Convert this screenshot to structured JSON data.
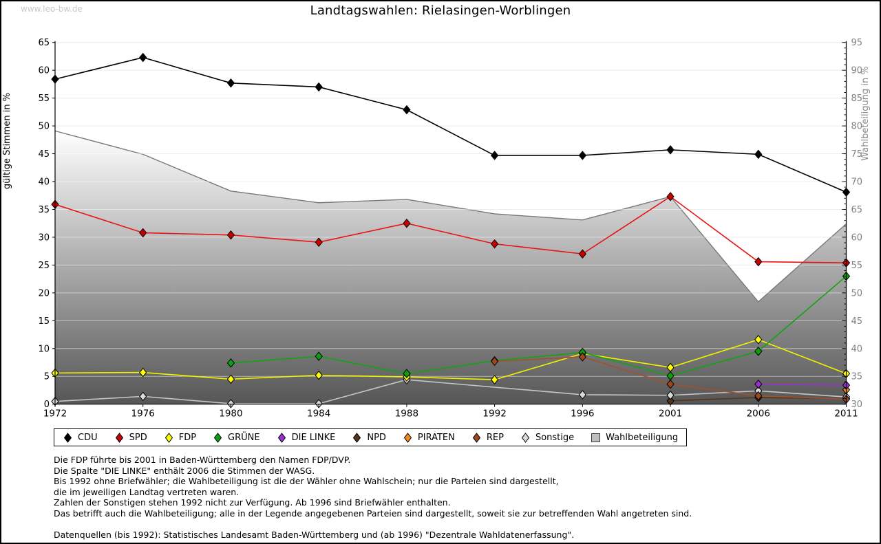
{
  "watermark": "www.leo-bw.de",
  "title": "Landtagswahlen: Rielasingen-Worblingen",
  "chart_data": {
    "type": "line",
    "categories": [
      "1972",
      "1976",
      "1980",
      "1984",
      "1988",
      "1992",
      "1996",
      "2001",
      "2006",
      "2011"
    ],
    "ylabel_left": "gültige Stimmen in %",
    "ylabel_right": "Wahlbeteiligung in %",
    "ylim_left": [
      0,
      65
    ],
    "ylim_right": [
      30,
      95
    ],
    "ytick_step": 5,
    "grid": true,
    "legend_position": "bottom",
    "series": [
      {
        "name": "CDU",
        "color": "#000000",
        "marker": "#000000",
        "values": [
          58.4,
          62.3,
          57.7,
          57.0,
          52.9,
          44.7,
          44.7,
          45.7,
          44.9,
          38.1
        ]
      },
      {
        "name": "SPD",
        "color": "#e81414",
        "marker": "#c80000",
        "values": [
          35.9,
          30.8,
          30.4,
          29.1,
          32.5,
          28.8,
          27.0,
          37.3,
          25.6,
          25.4
        ]
      },
      {
        "name": "FDP",
        "color": "#f2f200",
        "marker": "#ffff00",
        "values": [
          5.6,
          5.7,
          4.5,
          5.2,
          4.9,
          4.4,
          9.1,
          6.6,
          11.6,
          5.5
        ]
      },
      {
        "name": "GRÜNE",
        "color": "#12a312",
        "marker": "#0da00d",
        "values": [
          null,
          null,
          7.4,
          8.6,
          5.5,
          7.8,
          9.3,
          5.1,
          9.5,
          23.0
        ]
      },
      {
        "name": "DIE LINKE",
        "color": "#9b30d0",
        "marker": "#9b30d0",
        "values": [
          null,
          null,
          null,
          null,
          null,
          null,
          null,
          null,
          3.6,
          3.4
        ]
      },
      {
        "name": "NPD",
        "color": "#553318",
        "marker": "#553318",
        "values": [
          null,
          null,
          null,
          null,
          null,
          null,
          null,
          0.6,
          1.2,
          1.0
        ]
      },
      {
        "name": "PIRATEN",
        "color": "#ee8a1a",
        "marker": "#ee8a1a",
        "values": [
          null,
          null,
          null,
          null,
          null,
          null,
          null,
          null,
          null,
          2.6
        ]
      },
      {
        "name": "REP",
        "color": "#a0522d",
        "marker": "#99481f",
        "values": [
          null,
          null,
          null,
          null,
          null,
          7.7,
          8.5,
          3.6,
          1.5,
          0.9
        ]
      },
      {
        "name": "Sonstige",
        "color": "#c6c6c6",
        "marker": "#d9d9d9",
        "values": [
          0.5,
          1.4,
          0.1,
          0.1,
          4.4,
          null,
          1.7,
          1.6,
          2.4,
          1.3
        ]
      }
    ],
    "turnout": {
      "name": "Wahlbeteiligung",
      "axis": "right",
      "fill_top": "#ffffff",
      "fill_bottom": "#565656",
      "edge_color": "#787878",
      "values": [
        79.1,
        74.9,
        68.3,
        66.2,
        66.8,
        64.2,
        63.1,
        67.3,
        48.4,
        62.4
      ]
    }
  },
  "footnotes": [
    "Die FDP führte bis 2001 in Baden-Württemberg den Namen FDP/DVP.",
    "Die Spalte \"DIE LINKE\" enthält 2006 die Stimmen der WASG.",
    "Bis 1992 ohne Briefwähler; die Wahlbeteiligung ist die der Wähler ohne Wahlschein; nur die Parteien sind dargestellt,",
    "die im jeweiligen Landtag vertreten waren.",
    "Zahlen der Sonstigen stehen 1992 nicht zur Verfügung. Ab 1996 sind Briefwähler enthalten.",
    "Das betrifft auch die Wahlbeteiligung; alle in der Legende angegebenen Parteien sind dargestellt, soweit sie zur betreffenden Wahl angetreten sind.",
    "",
    "Datenquellen (bis 1992): Statistisches Landesamt Baden-Württemberg und (ab 1996) \"Dezentrale Wahldatenerfassung\"."
  ]
}
